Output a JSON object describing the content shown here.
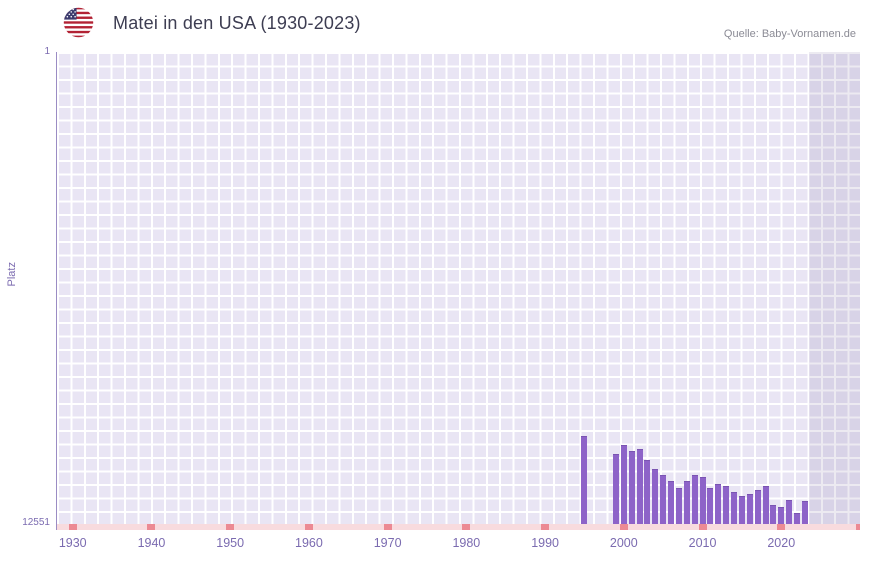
{
  "header": {
    "title": "Matei in den USA (1930-2023)",
    "source": "Quelle: Baby-Vornamen.de"
  },
  "chart_data": {
    "type": "bar",
    "title": "Matei in den USA (1930-2023)",
    "xlabel": "",
    "ylabel": "Platz",
    "y_axis": {
      "min": 1,
      "max": 12551,
      "inverted": true,
      "tick_labels": [
        "1",
        "12551"
      ]
    },
    "x_range": [
      1928,
      2030
    ],
    "x_ticks": [
      1930,
      1940,
      1950,
      1960,
      1970,
      1980,
      1990,
      2000,
      2010,
      2020
    ],
    "highlight_region": {
      "from": 2023.5,
      "to": 2030
    },
    "baseline_mark_years": [
      1930,
      1940,
      1950,
      1960,
      1970,
      1980,
      1990,
      2000,
      2010,
      2020,
      2030
    ],
    "series": [
      {
        "name": "Platz",
        "points": [
          {
            "year": 1995,
            "rank": 10200
          },
          {
            "year": 1999,
            "rank": 10700
          },
          {
            "year": 2000,
            "rank": 10450
          },
          {
            "year": 2001,
            "rank": 10600
          },
          {
            "year": 2002,
            "rank": 10550
          },
          {
            "year": 2003,
            "rank": 10850
          },
          {
            "year": 2004,
            "rank": 11100
          },
          {
            "year": 2005,
            "rank": 11250
          },
          {
            "year": 2006,
            "rank": 11400
          },
          {
            "year": 2007,
            "rank": 11600
          },
          {
            "year": 2008,
            "rank": 11400
          },
          {
            "year": 2009,
            "rank": 11250
          },
          {
            "year": 2010,
            "rank": 11300
          },
          {
            "year": 2011,
            "rank": 11600
          },
          {
            "year": 2012,
            "rank": 11500
          },
          {
            "year": 2013,
            "rank": 11550
          },
          {
            "year": 2014,
            "rank": 11700
          },
          {
            "year": 2015,
            "rank": 11800
          },
          {
            "year": 2016,
            "rank": 11750
          },
          {
            "year": 2017,
            "rank": 11650
          },
          {
            "year": 2018,
            "rank": 11550
          },
          {
            "year": 2019,
            "rank": 12050
          },
          {
            "year": 2020,
            "rank": 12100
          },
          {
            "year": 2021,
            "rank": 11900
          },
          {
            "year": 2022,
            "rank": 12250
          },
          {
            "year": 2023,
            "rank": 11950
          }
        ]
      }
    ],
    "colors": {
      "bar": "#8d63c8",
      "bar_border": "#7a54b2",
      "plot_bg": "#e9e5f4",
      "grid_line": "#ffffff",
      "future_shade": "rgba(108,92,150,0.13)",
      "axis_text": "#7b6bb0",
      "baseline_band": "#f8dbde",
      "baseline_mark": "#ec8a93"
    }
  }
}
